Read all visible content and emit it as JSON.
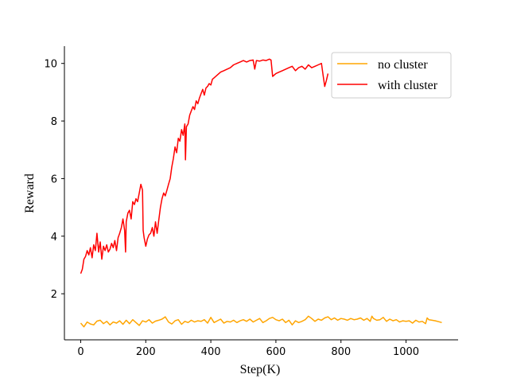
{
  "chart_data": {
    "type": "line",
    "title": "",
    "xlabel": "Step(K)",
    "ylabel": "Reward",
    "xlim": [
      -50,
      1160
    ],
    "ylim": [
      0.4,
      10.6
    ],
    "xticks": [
      0,
      200,
      400,
      600,
      800,
      1000
    ],
    "yticks": [
      2,
      4,
      6,
      8,
      10
    ],
    "grid": false,
    "legend_position": "top-right",
    "series": [
      {
        "name": "no cluster",
        "color": "#ffa500",
        "points": [
          [
            0,
            0.98
          ],
          [
            10,
            0.85
          ],
          [
            20,
            1.02
          ],
          [
            30,
            0.95
          ],
          [
            40,
            0.92
          ],
          [
            50,
            1.05
          ],
          [
            60,
            1.08
          ],
          [
            70,
            0.96
          ],
          [
            80,
            1.04
          ],
          [
            90,
            0.92
          ],
          [
            100,
            1.02
          ],
          [
            110,
            0.98
          ],
          [
            120,
            1.06
          ],
          [
            130,
            0.94
          ],
          [
            140,
            1.08
          ],
          [
            150,
            0.96
          ],
          [
            160,
            1.1
          ],
          [
            170,
            1.0
          ],
          [
            180,
            0.9
          ],
          [
            190,
            1.06
          ],
          [
            200,
            1.02
          ],
          [
            210,
            1.1
          ],
          [
            220,
            0.98
          ],
          [
            230,
            1.05
          ],
          [
            240,
            1.08
          ],
          [
            250,
            1.12
          ],
          [
            260,
            1.2
          ],
          [
            270,
            1.02
          ],
          [
            280,
            0.95
          ],
          [
            290,
            1.06
          ],
          [
            300,
            1.1
          ],
          [
            310,
            0.94
          ],
          [
            320,
            1.04
          ],
          [
            330,
            1.0
          ],
          [
            340,
            1.08
          ],
          [
            350,
            1.02
          ],
          [
            360,
            1.06
          ],
          [
            370,
            1.04
          ],
          [
            380,
            1.1
          ],
          [
            390,
            0.98
          ],
          [
            400,
            1.18
          ],
          [
            410,
            1.0
          ],
          [
            420,
            1.06
          ],
          [
            430,
            1.12
          ],
          [
            440,
            0.98
          ],
          [
            450,
            1.04
          ],
          [
            460,
            1.02
          ],
          [
            470,
            1.08
          ],
          [
            480,
            1.0
          ],
          [
            490,
            1.06
          ],
          [
            500,
            1.1
          ],
          [
            510,
            1.04
          ],
          [
            520,
            1.12
          ],
          [
            530,
            1.02
          ],
          [
            540,
            1.08
          ],
          [
            550,
            1.14
          ],
          [
            560,
            1.0
          ],
          [
            570,
            1.06
          ],
          [
            580,
            1.14
          ],
          [
            590,
            1.18
          ],
          [
            600,
            1.1
          ],
          [
            610,
            1.06
          ],
          [
            620,
            1.12
          ],
          [
            630,
            1.0
          ],
          [
            640,
            1.08
          ],
          [
            650,
            0.92
          ],
          [
            660,
            1.06
          ],
          [
            670,
            1.0
          ],
          [
            680,
            1.04
          ],
          [
            690,
            1.1
          ],
          [
            700,
            1.22
          ],
          [
            710,
            1.14
          ],
          [
            720,
            1.04
          ],
          [
            730,
            1.12
          ],
          [
            740,
            1.08
          ],
          [
            750,
            1.16
          ],
          [
            760,
            1.2
          ],
          [
            770,
            1.1
          ],
          [
            780,
            1.16
          ],
          [
            790,
            1.08
          ],
          [
            800,
            1.14
          ],
          [
            810,
            1.12
          ],
          [
            820,
            1.08
          ],
          [
            830,
            1.14
          ],
          [
            840,
            1.1
          ],
          [
            850,
            1.12
          ],
          [
            860,
            1.16
          ],
          [
            870,
            1.08
          ],
          [
            880,
            1.14
          ],
          [
            890,
            1.04
          ],
          [
            895,
            1.22
          ],
          [
            900,
            1.14
          ],
          [
            910,
            1.08
          ],
          [
            920,
            1.1
          ],
          [
            930,
            1.18
          ],
          [
            940,
            1.04
          ],
          [
            950,
            1.12
          ],
          [
            960,
            1.06
          ],
          [
            970,
            1.1
          ],
          [
            980,
            1.02
          ],
          [
            990,
            1.06
          ],
          [
            1000,
            1.04
          ],
          [
            1010,
            1.06
          ],
          [
            1020,
            0.98
          ],
          [
            1030,
            1.08
          ],
          [
            1040,
            1.02
          ],
          [
            1050,
            1.04
          ],
          [
            1060,
            0.96
          ],
          [
            1065,
            1.16
          ],
          [
            1070,
            1.1
          ],
          [
            1080,
            1.08
          ],
          [
            1090,
            1.06
          ],
          [
            1100,
            1.03
          ],
          [
            1110,
            1.0
          ]
        ]
      },
      {
        "name": "with cluster",
        "color": "#ff0000",
        "points": [
          [
            0,
            2.7
          ],
          [
            5,
            2.85
          ],
          [
            10,
            3.2
          ],
          [
            15,
            3.3
          ],
          [
            20,
            3.5
          ],
          [
            25,
            3.35
          ],
          [
            30,
            3.6
          ],
          [
            35,
            3.25
          ],
          [
            40,
            3.7
          ],
          [
            45,
            3.5
          ],
          [
            50,
            4.1
          ],
          [
            55,
            3.45
          ],
          [
            60,
            3.8
          ],
          [
            65,
            3.2
          ],
          [
            70,
            3.65
          ],
          [
            75,
            3.5
          ],
          [
            80,
            3.7
          ],
          [
            85,
            3.45
          ],
          [
            90,
            3.55
          ],
          [
            95,
            3.75
          ],
          [
            100,
            3.6
          ],
          [
            105,
            3.85
          ],
          [
            110,
            3.5
          ],
          [
            115,
            3.95
          ],
          [
            120,
            4.1
          ],
          [
            125,
            4.3
          ],
          [
            130,
            4.6
          ],
          [
            135,
            4.2
          ],
          [
            138,
            3.45
          ],
          [
            140,
            4.5
          ],
          [
            145,
            4.8
          ],
          [
            150,
            4.9
          ],
          [
            155,
            4.6
          ],
          [
            160,
            5.2
          ],
          [
            165,
            5.1
          ],
          [
            170,
            5.3
          ],
          [
            175,
            5.2
          ],
          [
            180,
            5.5
          ],
          [
            185,
            5.8
          ],
          [
            190,
            5.6
          ],
          [
            192,
            4.2
          ],
          [
            195,
            3.95
          ],
          [
            200,
            3.65
          ],
          [
            205,
            3.9
          ],
          [
            210,
            4.05
          ],
          [
            215,
            4.1
          ],
          [
            220,
            4.3
          ],
          [
            225,
            4.0
          ],
          [
            230,
            4.5
          ],
          [
            235,
            4.1
          ],
          [
            240,
            4.55
          ],
          [
            245,
            5.0
          ],
          [
            250,
            5.3
          ],
          [
            255,
            5.5
          ],
          [
            260,
            5.4
          ],
          [
            265,
            5.6
          ],
          [
            270,
            5.8
          ],
          [
            275,
            6.0
          ],
          [
            280,
            6.4
          ],
          [
            285,
            6.7
          ],
          [
            290,
            7.1
          ],
          [
            295,
            6.9
          ],
          [
            300,
            7.4
          ],
          [
            305,
            7.3
          ],
          [
            310,
            7.7
          ],
          [
            315,
            7.5
          ],
          [
            320,
            7.9
          ],
          [
            322,
            6.65
          ],
          [
            325,
            7.8
          ],
          [
            330,
            7.9
          ],
          [
            335,
            8.2
          ],
          [
            340,
            8.35
          ],
          [
            345,
            8.5
          ],
          [
            350,
            8.4
          ],
          [
            355,
            8.7
          ],
          [
            360,
            8.6
          ],
          [
            365,
            8.8
          ],
          [
            370,
            8.95
          ],
          [
            375,
            9.1
          ],
          [
            380,
            8.9
          ],
          [
            385,
            9.15
          ],
          [
            390,
            9.2
          ],
          [
            395,
            9.3
          ],
          [
            400,
            9.25
          ],
          [
            405,
            9.45
          ],
          [
            410,
            9.5
          ],
          [
            420,
            9.6
          ],
          [
            430,
            9.7
          ],
          [
            440,
            9.75
          ],
          [
            450,
            9.8
          ],
          [
            460,
            9.85
          ],
          [
            470,
            9.95
          ],
          [
            480,
            10.0
          ],
          [
            490,
            10.05
          ],
          [
            500,
            10.1
          ],
          [
            510,
            10.05
          ],
          [
            520,
            10.1
          ],
          [
            530,
            10.12
          ],
          [
            535,
            9.8
          ],
          [
            540,
            10.1
          ],
          [
            550,
            10.08
          ],
          [
            560,
            10.12
          ],
          [
            570,
            10.1
          ],
          [
            580,
            10.15
          ],
          [
            585,
            10.12
          ],
          [
            590,
            9.55
          ],
          [
            600,
            9.65
          ],
          [
            610,
            9.7
          ],
          [
            620,
            9.75
          ],
          [
            630,
            9.8
          ],
          [
            640,
            9.85
          ],
          [
            650,
            9.9
          ],
          [
            660,
            9.75
          ],
          [
            670,
            9.85
          ],
          [
            680,
            9.9
          ],
          [
            690,
            9.8
          ],
          [
            700,
            9.95
          ],
          [
            710,
            9.85
          ],
          [
            720,
            9.9
          ],
          [
            730,
            9.95
          ],
          [
            740,
            10.0
          ],
          [
            745,
            9.6
          ],
          [
            750,
            9.2
          ],
          [
            755,
            9.4
          ],
          [
            760,
            9.65
          ]
        ]
      }
    ]
  }
}
